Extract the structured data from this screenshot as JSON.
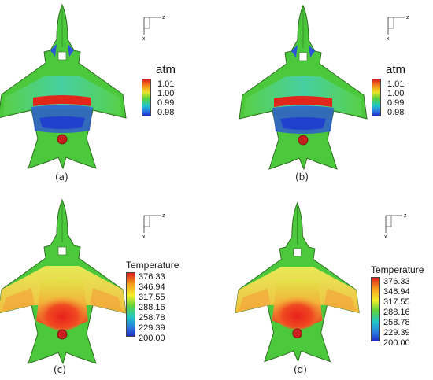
{
  "axis_labels": {
    "horizontal": "z",
    "vertical": "x"
  },
  "colors": {
    "aircraft_base": "#4cc83c",
    "high_value": "#e32b1f",
    "low_value": "#1e3ccf",
    "outline": "#2d6e20"
  },
  "panels": [
    {
      "caption": "(a)",
      "legend": {
        "title": "atm",
        "ticks": [
          "1.01",
          "1.00",
          "0.99",
          "0.98"
        ]
      }
    },
    {
      "caption": "(b)",
      "legend": {
        "title": "atm",
        "ticks": [
          "1.01",
          "1.00",
          "0.99",
          "0.98"
        ]
      }
    },
    {
      "caption": "(c)",
      "legend": {
        "title": "Temperature",
        "ticks": [
          "376.33",
          "346.94",
          "317.55",
          "288.16",
          "258.78",
          "229.39",
          "200.00"
        ]
      }
    },
    {
      "caption": "(d)",
      "legend": {
        "title": "Temperature",
        "ticks": [
          "376.33",
          "346.94",
          "317.55",
          "288.16",
          "258.78",
          "229.39",
          "200.00"
        ]
      }
    }
  ]
}
